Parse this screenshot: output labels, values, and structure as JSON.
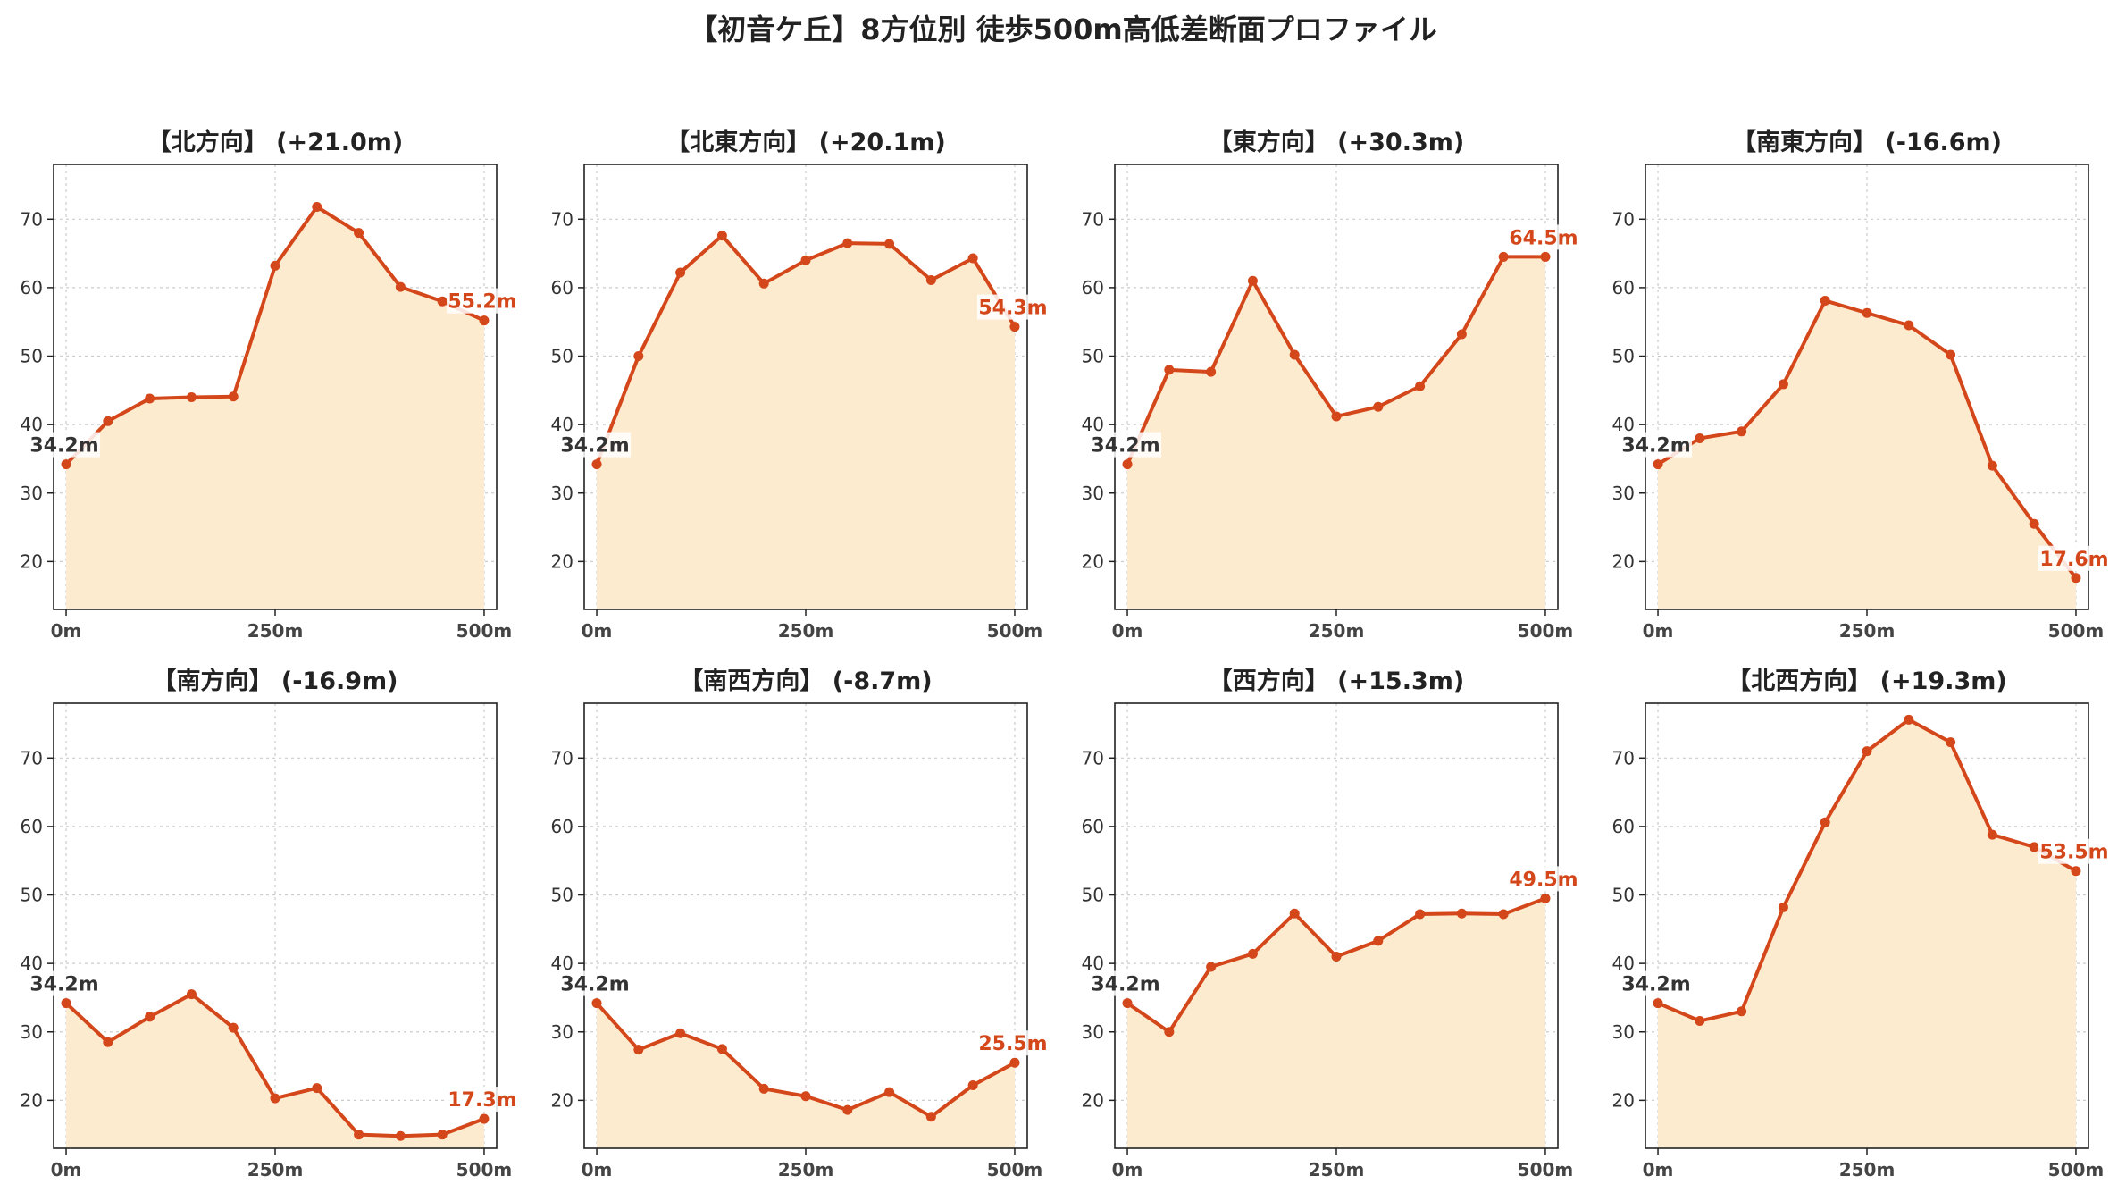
{
  "figure": {
    "title": "【初音ケ丘】8方位別 徒歩500m高低差断面プロファイル"
  },
  "style": {
    "line_color": "#d4471a",
    "fill_color": "#fdebd0",
    "start_label_color": "#333333",
    "end_label_color": "#d4471a",
    "grid_color": "#cccccc"
  },
  "chart_data": [
    {
      "type": "area",
      "title": "【北方向】 (+21.0m)",
      "x": [
        0,
        50,
        100,
        150,
        200,
        250,
        300,
        350,
        400,
        450,
        500
      ],
      "y": [
        34.2,
        40.5,
        43.8,
        44.0,
        44.1,
        63.2,
        71.8,
        68.0,
        60.1,
        58.0,
        55.2
      ],
      "xticks": [
        0,
        250,
        500
      ],
      "xtick_labels": [
        "0m",
        "250m",
        "500m"
      ],
      "yticks": [
        20,
        30,
        40,
        50,
        60,
        70
      ],
      "xlim": [
        -15,
        515
      ],
      "ylim": [
        13,
        78
      ],
      "grid": true,
      "start_label": "34.2m",
      "end_label": "55.2m"
    },
    {
      "type": "area",
      "title": "【北東方向】 (+20.1m)",
      "x": [
        0,
        50,
        100,
        150,
        200,
        250,
        300,
        350,
        400,
        450,
        500
      ],
      "y": [
        34.2,
        50.0,
        62.2,
        67.6,
        60.6,
        64.0,
        66.5,
        66.4,
        61.1,
        64.3,
        54.3
      ],
      "xticks": [
        0,
        250,
        500
      ],
      "xtick_labels": [
        "0m",
        "250m",
        "500m"
      ],
      "yticks": [
        20,
        30,
        40,
        50,
        60,
        70
      ],
      "xlim": [
        -15,
        515
      ],
      "ylim": [
        13,
        78
      ],
      "grid": true,
      "start_label": "34.2m",
      "end_label": "54.3m"
    },
    {
      "type": "area",
      "title": "【東方向】 (+30.3m)",
      "x": [
        0,
        50,
        100,
        150,
        200,
        250,
        300,
        350,
        400,
        450,
        500
      ],
      "y": [
        34.2,
        48.0,
        47.7,
        61.0,
        50.2,
        41.2,
        42.6,
        45.6,
        53.2,
        64.5,
        64.5
      ],
      "xticks": [
        0,
        250,
        500
      ],
      "xtick_labels": [
        "0m",
        "250m",
        "500m"
      ],
      "yticks": [
        20,
        30,
        40,
        50,
        60,
        70
      ],
      "xlim": [
        -15,
        515
      ],
      "ylim": [
        13,
        78
      ],
      "grid": true,
      "start_label": "34.2m",
      "end_label": "64.5m"
    },
    {
      "type": "area",
      "title": "【南東方向】 (-16.6m)",
      "x": [
        0,
        50,
        100,
        150,
        200,
        250,
        300,
        350,
        400,
        450,
        500
      ],
      "y": [
        34.2,
        38.0,
        39.0,
        45.9,
        58.1,
        56.3,
        54.5,
        50.2,
        34.0,
        25.5,
        17.6
      ],
      "xticks": [
        0,
        250,
        500
      ],
      "xtick_labels": [
        "0m",
        "250m",
        "500m"
      ],
      "yticks": [
        20,
        30,
        40,
        50,
        60,
        70
      ],
      "xlim": [
        -15,
        515
      ],
      "ylim": [
        13,
        78
      ],
      "grid": true,
      "start_label": "34.2m",
      "end_label": "17.6m"
    },
    {
      "type": "area",
      "title": "【南方向】 (-16.9m)",
      "x": [
        0,
        50,
        100,
        150,
        200,
        250,
        300,
        350,
        400,
        450,
        500
      ],
      "y": [
        34.2,
        28.5,
        32.2,
        35.5,
        30.6,
        20.3,
        21.8,
        15.0,
        14.8,
        15.0,
        17.3
      ],
      "xticks": [
        0,
        250,
        500
      ],
      "xtick_labels": [
        "0m",
        "250m",
        "500m"
      ],
      "yticks": [
        20,
        30,
        40,
        50,
        60,
        70
      ],
      "xlim": [
        -15,
        515
      ],
      "ylim": [
        13,
        78
      ],
      "grid": true,
      "start_label": "34.2m",
      "end_label": "17.3m"
    },
    {
      "type": "area",
      "title": "【南西方向】 (-8.7m)",
      "x": [
        0,
        50,
        100,
        150,
        200,
        250,
        300,
        350,
        400,
        450,
        500
      ],
      "y": [
        34.2,
        27.4,
        29.8,
        27.5,
        21.7,
        20.6,
        18.6,
        21.2,
        17.6,
        22.2,
        25.5
      ],
      "xticks": [
        0,
        250,
        500
      ],
      "xtick_labels": [
        "0m",
        "250m",
        "500m"
      ],
      "yticks": [
        20,
        30,
        40,
        50,
        60,
        70
      ],
      "xlim": [
        -15,
        515
      ],
      "ylim": [
        13,
        78
      ],
      "grid": true,
      "start_label": "34.2m",
      "end_label": "25.5m"
    },
    {
      "type": "area",
      "title": "【西方向】 (+15.3m)",
      "x": [
        0,
        50,
        100,
        150,
        200,
        250,
        300,
        350,
        400,
        450,
        500
      ],
      "y": [
        34.2,
        30.0,
        39.5,
        41.4,
        47.3,
        41.0,
        43.3,
        47.2,
        47.3,
        47.2,
        49.5
      ],
      "xticks": [
        0,
        250,
        500
      ],
      "xtick_labels": [
        "0m",
        "250m",
        "500m"
      ],
      "yticks": [
        20,
        30,
        40,
        50,
        60,
        70
      ],
      "xlim": [
        -15,
        515
      ],
      "ylim": [
        13,
        78
      ],
      "grid": true,
      "start_label": "34.2m",
      "end_label": "49.5m"
    },
    {
      "type": "area",
      "title": "【北西方向】 (+19.3m)",
      "x": [
        0,
        50,
        100,
        150,
        200,
        250,
        300,
        350,
        400,
        450,
        500
      ],
      "y": [
        34.2,
        31.6,
        33.0,
        48.2,
        60.6,
        71.0,
        75.6,
        72.3,
        58.8,
        57.0,
        53.5
      ],
      "xticks": [
        0,
        250,
        500
      ],
      "xtick_labels": [
        "0m",
        "250m",
        "500m"
      ],
      "yticks": [
        20,
        30,
        40,
        50,
        60,
        70
      ],
      "xlim": [
        -15,
        515
      ],
      "ylim": [
        13,
        78
      ],
      "grid": true,
      "start_label": "34.2m",
      "end_label": "53.5m"
    }
  ]
}
